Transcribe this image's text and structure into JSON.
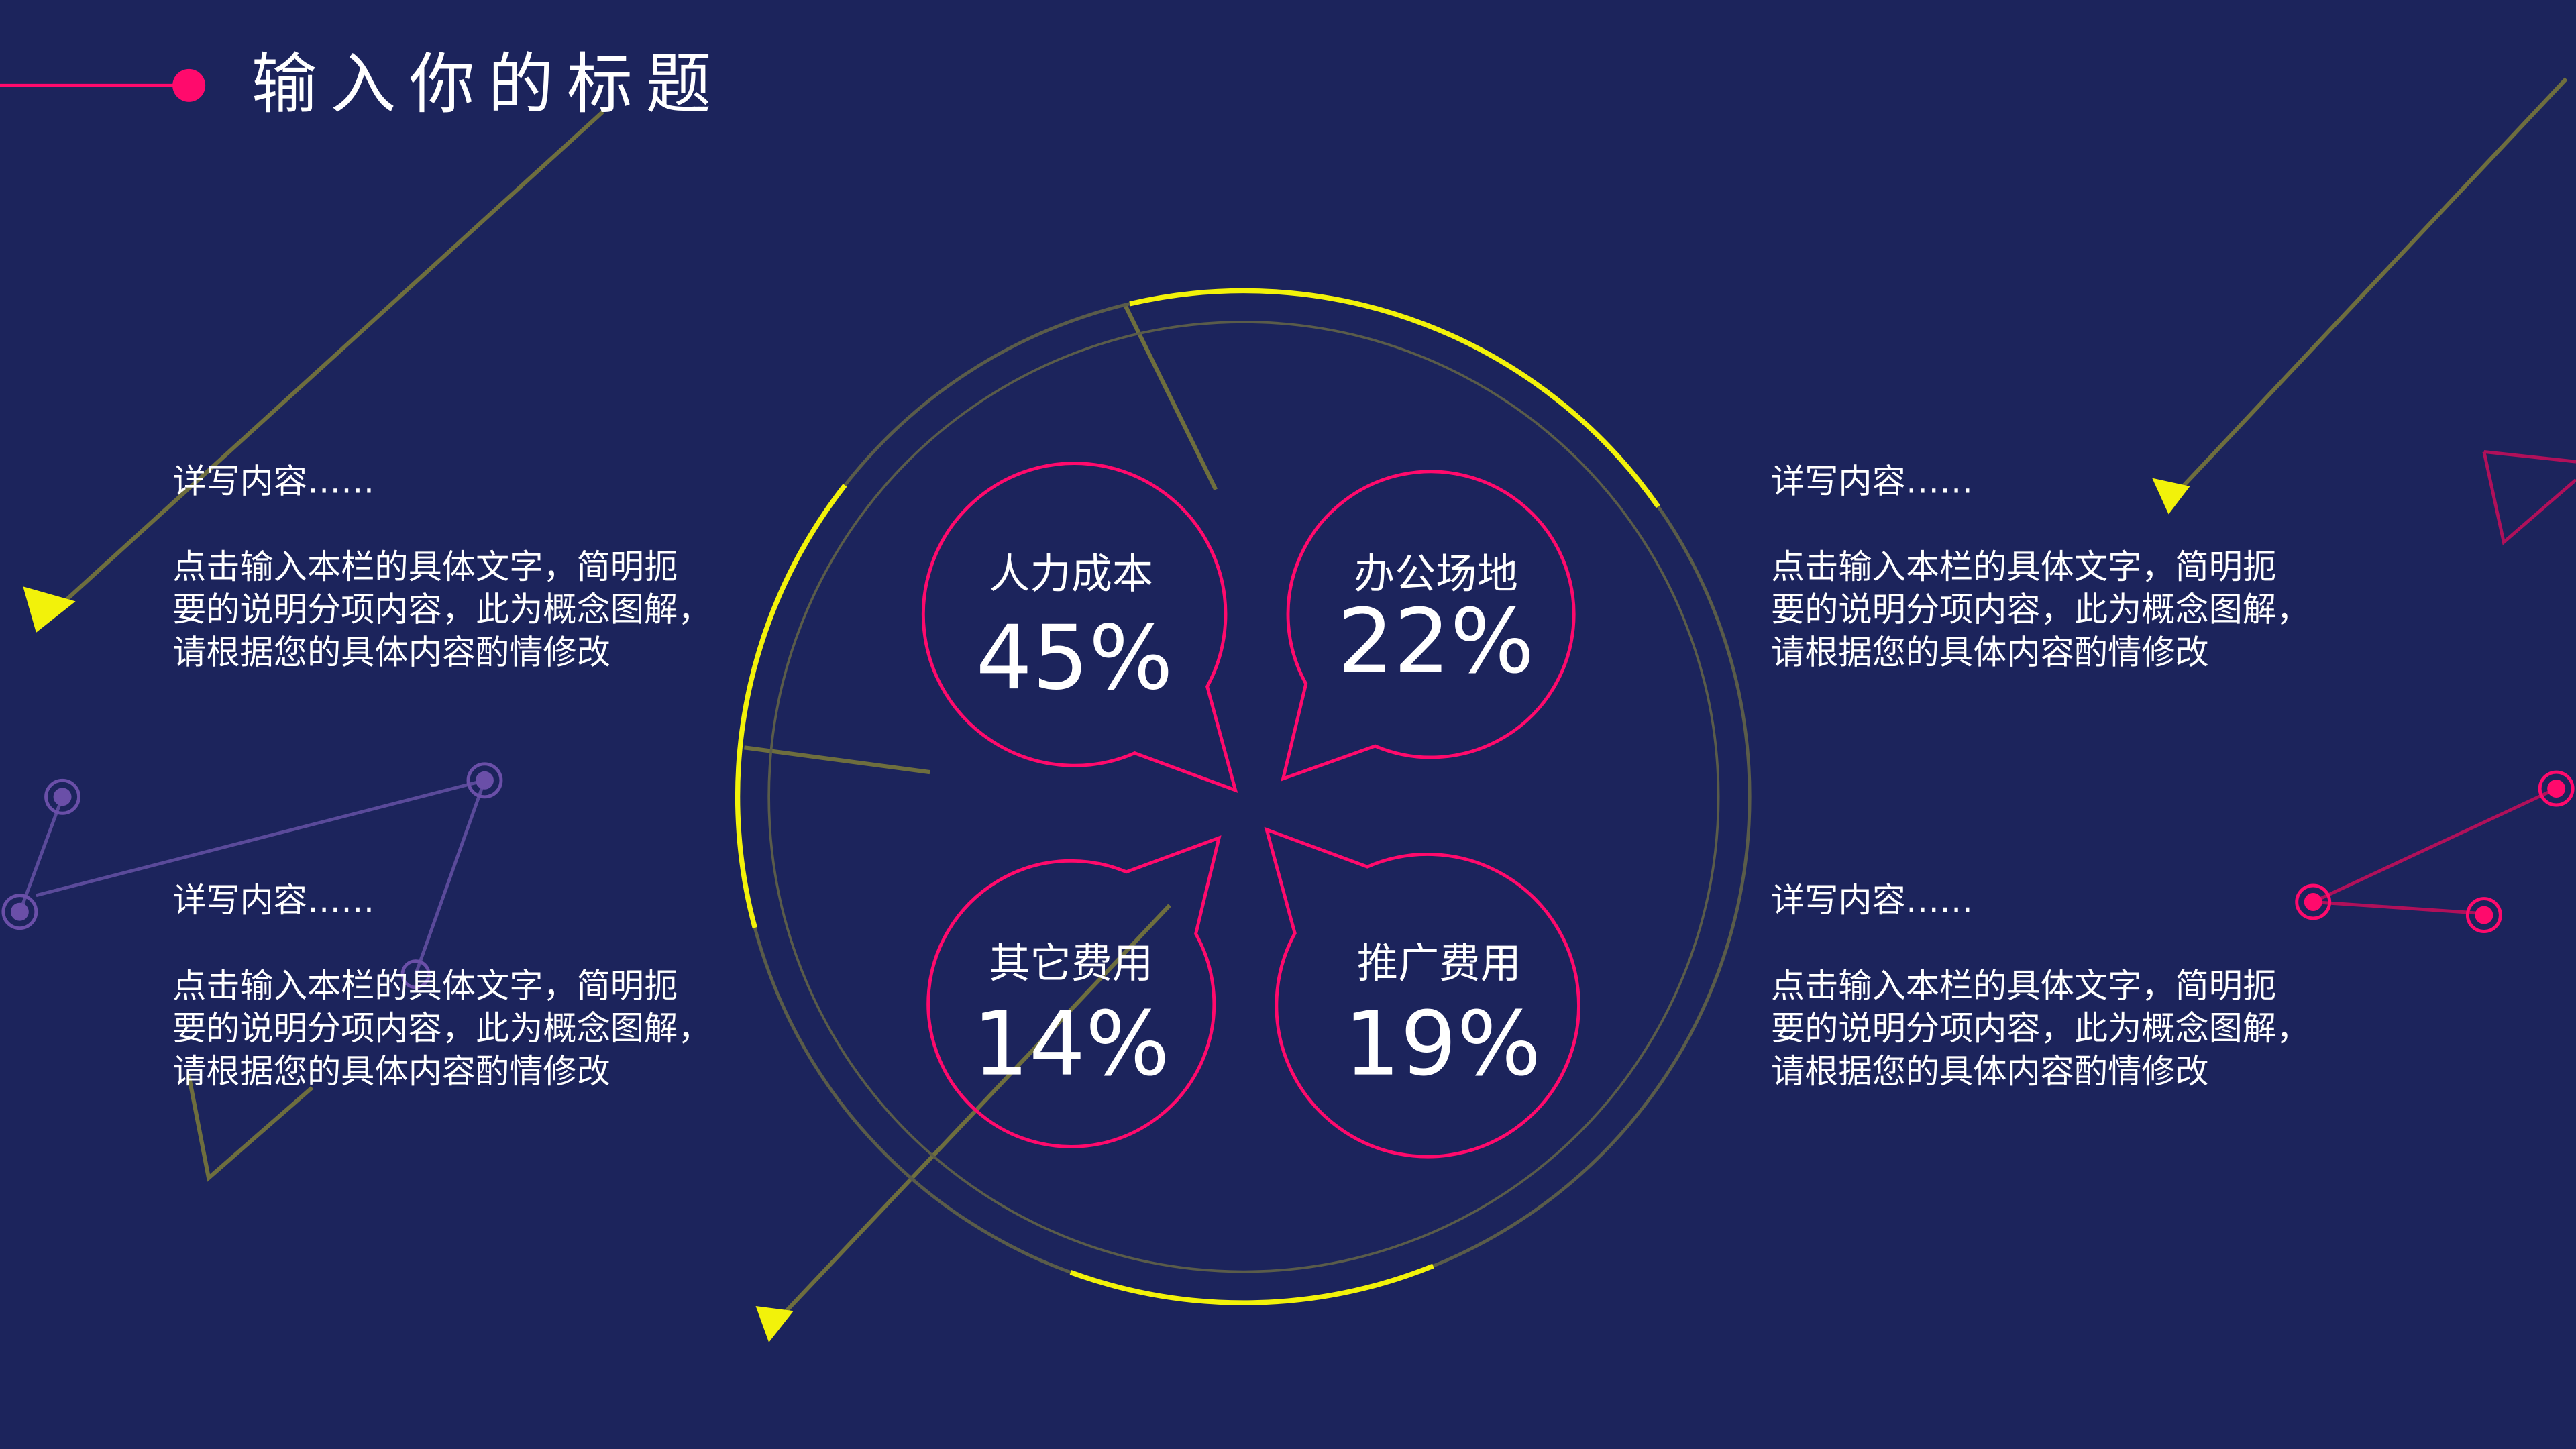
{
  "title": "输入你的标题",
  "colors": {
    "background": "#1c245c",
    "accent_pink": "#ff0a6c",
    "accent_yellow": "#f2f20a",
    "line_olive": "#6e6e3e",
    "node_purple": "#6a4fa8"
  },
  "text_blocks": [
    {
      "heading": "详写内容……",
      "body": [
        "点击输入本栏的具体文字，简明扼",
        "要的说明分项内容，此为概念图解，",
        "请根据您的具体内容酌情修改"
      ]
    },
    {
      "heading": "详写内容……",
      "body": [
        "点击输入本栏的具体文字，简明扼",
        "要的说明分项内容，此为概念图解，",
        "请根据您的具体内容酌情修改"
      ]
    },
    {
      "heading": "详写内容……",
      "body": [
        "点击输入本栏的具体文字，简明扼",
        "要的说明分项内容，此为概念图解，",
        "请根据您的具体内容酌情修改"
      ]
    },
    {
      "heading": "详写内容……",
      "body": [
        "点击输入本栏的具体文字，简明扼",
        "要的说明分项内容，此为概念图解，",
        "请根据您的具体内容酌情修改"
      ]
    }
  ],
  "bubbles": [
    {
      "label": "人力成本",
      "value": "45%"
    },
    {
      "label": "办公场地",
      "value": "22%"
    },
    {
      "label": "其它费用",
      "value": "14%"
    },
    {
      "label": "推广费用",
      "value": "19%"
    }
  ]
}
